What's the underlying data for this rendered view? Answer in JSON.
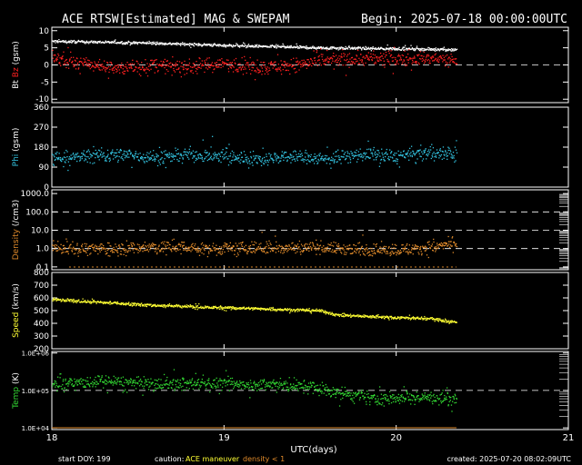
{
  "header": {
    "title": "ACE RTSW[Estimated] MAG & SWEPAM",
    "begin": "Begin: 2025-07-18 00:00:00UTC"
  },
  "footer": {
    "start_doy": "start DOY: 199",
    "caution_label": "caution:",
    "ace_maneuver": "ACE maneuver",
    "density_note": "density < 1",
    "created": "created: 2025-07-20 08:02:09UTC"
  },
  "colors": {
    "background": "#000000",
    "axes": "#ffffff",
    "bt": "#ffffff",
    "bz": "#ff2020",
    "phi": "#33c3e0",
    "density": "#e08a2a",
    "speed": "#ffff33",
    "temp": "#33d933",
    "maneuver": "#ffff33",
    "density_flag": "#e08a2a"
  },
  "chart_data": {
    "type": "scatter",
    "x_axis": {
      "label": "UTC(days)",
      "range": [
        18,
        21
      ],
      "ticks": [
        18,
        19,
        20,
        21
      ],
      "tick_labels": [
        "18",
        "19",
        "20",
        "21"
      ],
      "data_end": 20.35
    },
    "panels": [
      {
        "id": "mag",
        "ylabel_parts": [
          {
            "text": "Bt ",
            "color": "#ffffff"
          },
          {
            "text": "Bz",
            "color": "#ff2020"
          },
          {
            "text": " (gsm)",
            "color": "#ffffff"
          }
        ],
        "scale": "linear",
        "ylim": [
          -11,
          11
        ],
        "ticks": [
          -10,
          -5,
          0,
          5,
          10
        ],
        "tick_labels": [
          "-10",
          "-5",
          "0",
          "5",
          "10"
        ],
        "dashed_lines": [
          0
        ],
        "series": [
          {
            "name": "Bt",
            "color": "#ffffff",
            "points": [
              [
                18.0,
                7.0
              ],
              [
                18.3,
                6.8
              ],
              [
                18.6,
                6.5
              ],
              [
                18.9,
                6.0
              ],
              [
                19.2,
                5.6
              ],
              [
                19.5,
                5.2
              ],
              [
                19.8,
                5.0
              ],
              [
                20.1,
                4.8
              ],
              [
                20.35,
                4.6
              ]
            ],
            "spread": 0.6
          },
          {
            "name": "Bz",
            "color": "#ff2020",
            "points": [
              [
                18.0,
                2.0
              ],
              [
                18.2,
                0.5
              ],
              [
                18.4,
                -1.0
              ],
              [
                18.6,
                0.0
              ],
              [
                18.8,
                -0.5
              ],
              [
                19.0,
                0.5
              ],
              [
                19.2,
                -0.5
              ],
              [
                19.4,
                0.0
              ],
              [
                19.6,
                1.5
              ],
              [
                19.8,
                2.0
              ],
              [
                20.0,
                1.8
              ],
              [
                20.2,
                2.0
              ],
              [
                20.35,
                1.5
              ]
            ],
            "spread": 3.0
          }
        ]
      },
      {
        "id": "phi",
        "ylabel_parts": [
          {
            "text": "Phi",
            "color": "#33c3e0"
          },
          {
            "text": " (gsm)",
            "color": "#ffffff"
          }
        ],
        "scale": "linear",
        "ylim": [
          0,
          360
        ],
        "ticks": [
          0,
          90,
          180,
          270,
          360
        ],
        "tick_labels": [
          "0",
          "90",
          "180",
          "270",
          "360"
        ],
        "dashed_lines": [],
        "series": [
          {
            "name": "Phi",
            "color": "#33c3e0",
            "points": [
              [
                18.0,
                130
              ],
              [
                18.2,
                140
              ],
              [
                18.4,
                150
              ],
              [
                18.6,
                135
              ],
              [
                18.8,
                150
              ],
              [
                19.0,
                140
              ],
              [
                19.2,
                130
              ],
              [
                19.4,
                140
              ],
              [
                19.6,
                130
              ],
              [
                19.8,
                150
              ],
              [
                20.0,
                140
              ],
              [
                20.2,
                160
              ],
              [
                20.35,
                150
              ]
            ],
            "spread": 45
          }
        ]
      },
      {
        "id": "density",
        "ylabel_parts": [
          {
            "text": "Density",
            "color": "#e08a2a"
          },
          {
            "text": " (/cm3)",
            "color": "#ffffff"
          }
        ],
        "scale": "log",
        "ylim": [
          0.07,
          1600
        ],
        "ticks": [
          0.1,
          1.0,
          10.0,
          100.0,
          1000.0
        ],
        "tick_labels": [
          "0.1",
          "1.0",
          "10.0",
          "100.0",
          "1000.0"
        ],
        "dashed_lines": [
          1.0,
          10.0,
          100.0
        ],
        "series": [
          {
            "name": "Density",
            "color": "#e08a2a",
            "points": [
              [
                18.0,
                1.2
              ],
              [
                18.3,
                1.0
              ],
              [
                18.6,
                1.3
              ],
              [
                18.9,
                1.0
              ],
              [
                19.2,
                1.1
              ],
              [
                19.5,
                1.3
              ],
              [
                19.8,
                0.9
              ],
              [
                20.1,
                1.0
              ],
              [
                20.35,
                2.0
              ]
            ],
            "spread": 0.5
          }
        ]
      },
      {
        "id": "speed",
        "ylabel_parts": [
          {
            "text": "Speed",
            "color": "#ffff33"
          },
          {
            "text": " (km/s)",
            "color": "#ffffff"
          }
        ],
        "scale": "linear",
        "ylim": [
          200,
          800
        ],
        "ticks": [
          200,
          300,
          400,
          500,
          600,
          700,
          800
        ],
        "tick_labels": [
          "200",
          "300",
          "400",
          "500",
          "600",
          "700",
          "800"
        ],
        "dashed_lines": [],
        "series": [
          {
            "name": "Speed",
            "color": "#ffff33",
            "points": [
              [
                18.0,
                590
              ],
              [
                18.2,
                575
              ],
              [
                18.4,
                560
              ],
              [
                18.6,
                545
              ],
              [
                18.8,
                535
              ],
              [
                19.0,
                525
              ],
              [
                19.2,
                520
              ],
              [
                19.4,
                510
              ],
              [
                19.55,
                505
              ],
              [
                19.65,
                470
              ],
              [
                19.8,
                460
              ],
              [
                20.0,
                450
              ],
              [
                20.2,
                440
              ],
              [
                20.35,
                410
              ]
            ],
            "spread": 18
          }
        ]
      },
      {
        "id": "temp",
        "ylabel_parts": [
          {
            "text": "Temp",
            "color": "#33d933"
          },
          {
            "text": " (K)",
            "color": "#ffffff"
          }
        ],
        "scale": "log",
        "ylim": [
          9000,
          1100000
        ],
        "ticks": [
          10000,
          100000,
          1000000
        ],
        "tick_labels": [
          "1.0E+04",
          "1.0E+05",
          "1.0E+06"
        ],
        "dashed_lines": [
          100000
        ],
        "series": [
          {
            "name": "Temp",
            "color": "#33d933",
            "points": [
              [
                18.0,
                150000
              ],
              [
                18.3,
                180000
              ],
              [
                18.6,
                150000
              ],
              [
                18.9,
                160000
              ],
              [
                19.2,
                150000
              ],
              [
                19.5,
                130000
              ],
              [
                19.7,
                80000
              ],
              [
                19.9,
                60000
              ],
              [
                20.1,
                70000
              ],
              [
                20.35,
                60000
              ]
            ],
            "spread": 0.25
          }
        ]
      }
    ]
  }
}
